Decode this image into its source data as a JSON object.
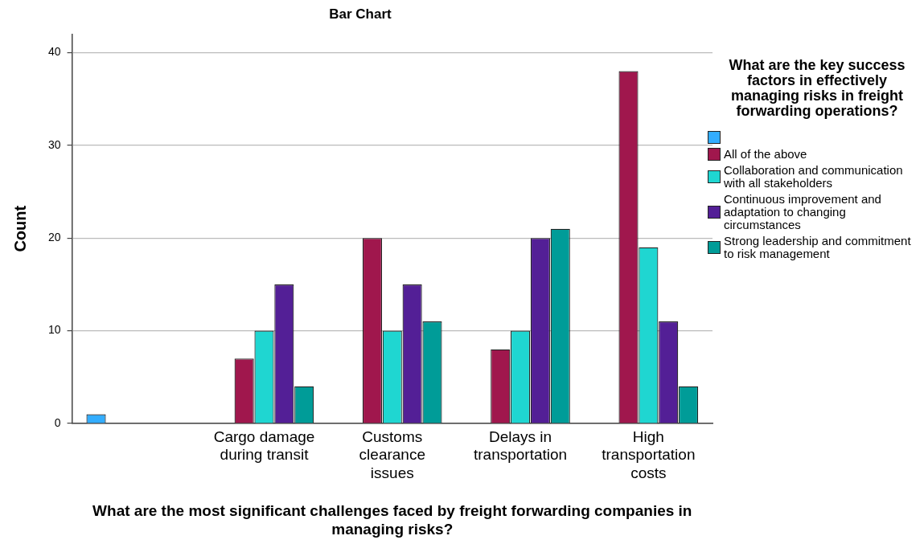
{
  "chart_data": {
    "type": "bar",
    "title": "Bar Chart",
    "xlabel": "What are the most significant challenges faced by freight forwarding companies in managing risks?",
    "ylabel": "Count",
    "legend_title": "What are the key success factors in effectively managing risks in freight forwarding operations?",
    "categories": [
      null,
      "Cargo damage during transit",
      "Customs clearance issues",
      "Delays in transportation",
      "High transportation costs"
    ],
    "series": [
      {
        "color": "#33adff",
        "values": [
          1,
          null,
          null,
          null,
          null
        ]
      },
      {
        "name": "All of the above",
        "color": "#a0174d",
        "values": [
          null,
          7,
          20,
          8,
          38
        ]
      },
      {
        "name": "Collaboration and communication with all stakeholders",
        "color": "#1fd6d1",
        "values": [
          null,
          10,
          10,
          10,
          19
        ]
      },
      {
        "name": "Continuous improvement and adaptation to changing circumstances",
        "color": "#531f96",
        "values": [
          null,
          15,
          15,
          20,
          11
        ]
      },
      {
        "name": "Strong leadership and commitment to risk management",
        "color": "#009c98",
        "values": [
          null,
          4,
          11,
          21,
          4
        ]
      }
    ],
    "ylim": [
      0,
      42
    ],
    "yticks": [
      0,
      10,
      20,
      30,
      40
    ],
    "grid": "y",
    "legend": "right"
  }
}
